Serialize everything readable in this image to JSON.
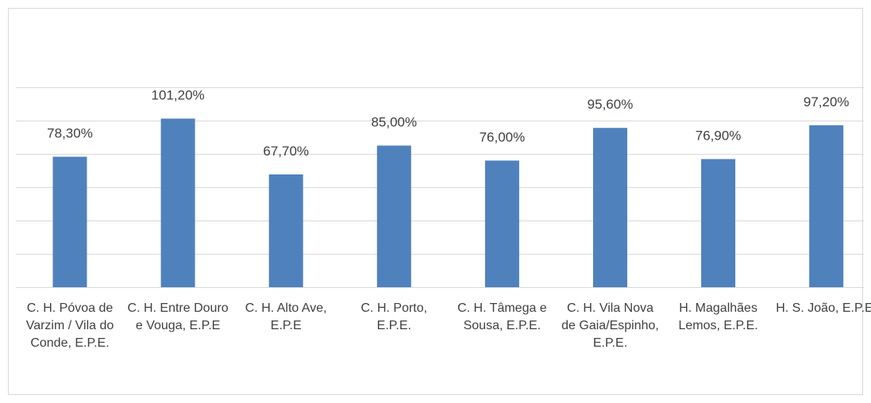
{
  "chart_data": {
    "type": "bar",
    "categories": [
      "C. H. Póvoa de Varzim / Vila do Conde, E.P.E.",
      "C. H. Entre Douro e Vouga, E.P.E",
      "C. H. Alto Ave, E.P.E",
      "C. H. Porto, E.P.E.",
      "C. H. Tâmega e Sousa, E.P.E.",
      "C. H. Vila Nova de Gaia/Espinho, E.P.E.",
      "H. Magalhães Lemos, E.P.E.",
      "H. S. João, E.P.E."
    ],
    "values": [
      78.3,
      101.2,
      67.7,
      85,
      76,
      95.6,
      76.9,
      97.2
    ],
    "value_labels": [
      "78,30%",
      "101,20%",
      "67,70%",
      "85,00%",
      "76,00%",
      "95,60%",
      "76,90%",
      "97,20%"
    ],
    "color": "#4f81bd",
    "ylim": [
      0,
      120
    ],
    "yticks": [
      0,
      20,
      40,
      60,
      80,
      100,
      120
    ],
    "grid": true
  }
}
